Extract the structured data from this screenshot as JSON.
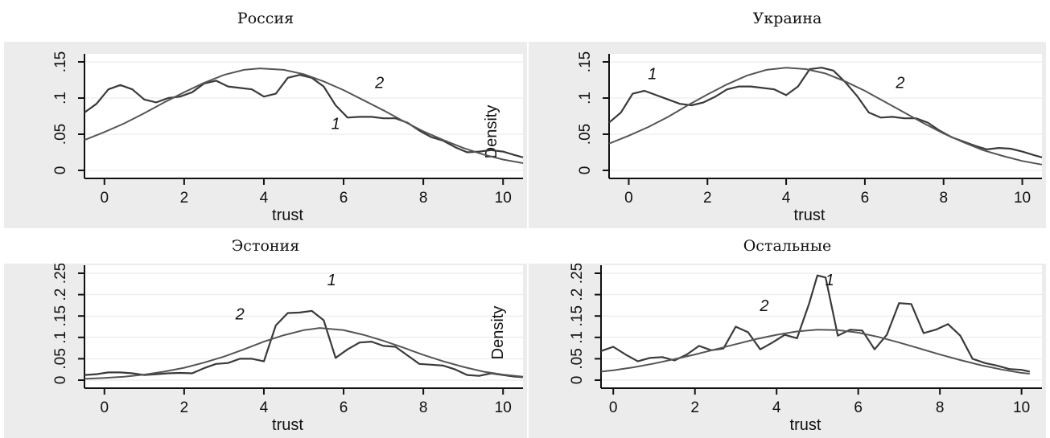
{
  "chart_data": [
    {
      "type": "line",
      "title": "Россия",
      "xlabel": "trust",
      "ylabel": "Density",
      "xlim": [
        -0.5,
        10.5
      ],
      "ylim": [
        0,
        0.15
      ],
      "xticks": [
        "0",
        "2",
        "4",
        "6",
        "8",
        "10"
      ],
      "yticks": [
        "0",
        ".05",
        ".1",
        ".15"
      ],
      "annotations": [
        {
          "text": "1",
          "x": 5.8,
          "y": 0.057
        },
        {
          "text": "2",
          "x": 6.9,
          "y": 0.114
        }
      ],
      "series": [
        {
          "name": "1",
          "kind": "kernel",
          "x": [
            -0.5,
            -0.2,
            0.1,
            0.4,
            0.7,
            1.0,
            1.3,
            1.6,
            1.9,
            2.2,
            2.5,
            2.8,
            3.1,
            3.4,
            3.7,
            4.0,
            4.3,
            4.6,
            4.9,
            5.2,
            5.5,
            5.8,
            6.1,
            6.4,
            6.7,
            7.0,
            7.3,
            7.6,
            7.9,
            8.2,
            8.5,
            8.8,
            9.1,
            9.4,
            9.7,
            10.0,
            10.3,
            10.5
          ],
          "y": [
            0.08,
            0.092,
            0.112,
            0.118,
            0.112,
            0.098,
            0.094,
            0.1,
            0.102,
            0.108,
            0.12,
            0.124,
            0.116,
            0.114,
            0.112,
            0.102,
            0.106,
            0.128,
            0.132,
            0.128,
            0.116,
            0.09,
            0.073,
            0.074,
            0.074,
            0.072,
            0.072,
            0.066,
            0.055,
            0.046,
            0.041,
            0.032,
            0.025,
            0.026,
            0.028,
            0.026,
            0.021,
            0.018
          ]
        },
        {
          "name": "2",
          "kind": "normal",
          "x": [
            -0.5,
            0.0,
            0.5,
            1.0,
            1.5,
            2.0,
            2.5,
            3.0,
            3.5,
            3.9,
            4.5,
            5.0,
            5.5,
            6.0,
            6.5,
            7.0,
            7.5,
            8.0,
            8.5,
            9.0,
            9.5,
            10.0,
            10.5
          ],
          "y": [
            0.042,
            0.053,
            0.065,
            0.079,
            0.094,
            0.108,
            0.121,
            0.132,
            0.139,
            0.141,
            0.139,
            0.133,
            0.123,
            0.111,
            0.097,
            0.083,
            0.068,
            0.054,
            0.042,
            0.031,
            0.022,
            0.015,
            0.01
          ]
        }
      ]
    },
    {
      "type": "line",
      "title": "Украина",
      "xlabel": "trust",
      "ylabel": "",
      "xlim": [
        -0.5,
        10.5
      ],
      "ylim": [
        0,
        0.15
      ],
      "xticks": [
        "0",
        "2",
        "4",
        "6",
        "8",
        "10"
      ],
      "yticks": [
        "0",
        ".05",
        ".1",
        ".15"
      ],
      "annotations": [
        {
          "text": "1",
          "x": 0.6,
          "y": 0.126
        },
        {
          "text": "2",
          "x": 6.9,
          "y": 0.114
        }
      ],
      "series": [
        {
          "name": "1",
          "kind": "kernel",
          "x": [
            -0.5,
            -0.2,
            0.1,
            0.4,
            0.7,
            1.0,
            1.3,
            1.6,
            1.9,
            2.2,
            2.5,
            2.8,
            3.1,
            3.4,
            3.7,
            4.0,
            4.3,
            4.6,
            4.9,
            5.2,
            5.5,
            5.8,
            6.1,
            6.4,
            6.7,
            7.0,
            7.3,
            7.6,
            7.9,
            8.2,
            8.5,
            8.8,
            9.1,
            9.4,
            9.7,
            10.0,
            10.3,
            10.5
          ],
          "y": [
            0.066,
            0.08,
            0.106,
            0.11,
            0.104,
            0.098,
            0.092,
            0.09,
            0.094,
            0.102,
            0.112,
            0.116,
            0.116,
            0.114,
            0.112,
            0.104,
            0.116,
            0.14,
            0.142,
            0.138,
            0.122,
            0.103,
            0.08,
            0.073,
            0.074,
            0.072,
            0.072,
            0.066,
            0.055,
            0.046,
            0.04,
            0.034,
            0.029,
            0.031,
            0.03,
            0.026,
            0.021,
            0.018
          ]
        },
        {
          "name": "2",
          "kind": "normal",
          "x": [
            -0.5,
            0.0,
            0.5,
            1.0,
            1.5,
            2.0,
            2.5,
            3.0,
            3.5,
            4.0,
            4.5,
            5.0,
            5.5,
            6.0,
            6.5,
            7.0,
            7.5,
            8.0,
            8.5,
            9.0,
            9.5,
            10.0,
            10.5
          ],
          "y": [
            0.037,
            0.048,
            0.06,
            0.074,
            0.09,
            0.105,
            0.119,
            0.131,
            0.139,
            0.142,
            0.14,
            0.134,
            0.123,
            0.11,
            0.095,
            0.08,
            0.065,
            0.051,
            0.039,
            0.028,
            0.02,
            0.013,
            0.008
          ]
        }
      ]
    },
    {
      "type": "line",
      "title": "Эстония",
      "xlabel": "trust",
      "ylabel": "Density",
      "xlim": [
        -0.5,
        10.5
      ],
      "ylim": [
        0,
        0.25
      ],
      "xticks": [
        "0",
        "2",
        "4",
        "6",
        "8",
        "10"
      ],
      "yticks": [
        "0",
        ".05",
        ".1",
        ".15",
        ".2",
        ".25"
      ],
      "annotations": [
        {
          "text": "1",
          "x": 5.7,
          "y": 0.222
        },
        {
          "text": "2",
          "x": 3.4,
          "y": 0.142
        }
      ],
      "series": [
        {
          "name": "1",
          "kind": "kernel",
          "x": [
            -0.5,
            -0.2,
            0.1,
            0.4,
            0.7,
            1.0,
            1.3,
            1.6,
            1.9,
            2.2,
            2.5,
            2.8,
            3.1,
            3.4,
            3.7,
            4.0,
            4.3,
            4.6,
            4.9,
            5.2,
            5.5,
            5.8,
            6.1,
            6.4,
            6.7,
            7.0,
            7.3,
            7.6,
            7.9,
            8.2,
            8.5,
            8.8,
            9.1,
            9.4,
            9.7,
            10.0,
            10.3,
            10.5
          ],
          "y": [
            0.012,
            0.014,
            0.018,
            0.018,
            0.016,
            0.012,
            0.014,
            0.016,
            0.017,
            0.016,
            0.028,
            0.038,
            0.04,
            0.05,
            0.05,
            0.044,
            0.128,
            0.157,
            0.158,
            0.162,
            0.14,
            0.052,
            0.072,
            0.088,
            0.09,
            0.08,
            0.078,
            0.058,
            0.038,
            0.036,
            0.034,
            0.025,
            0.012,
            0.01,
            0.016,
            0.012,
            0.008,
            0.007
          ]
        },
        {
          "name": "2",
          "kind": "normal",
          "x": [
            -0.5,
            0.0,
            0.5,
            1.0,
            1.5,
            2.0,
            2.5,
            3.0,
            3.5,
            4.0,
            4.5,
            5.0,
            5.4,
            6.0,
            6.5,
            7.0,
            7.5,
            8.0,
            8.5,
            9.0,
            9.5,
            10.0,
            10.5
          ],
          "y": [
            0.003,
            0.005,
            0.008,
            0.013,
            0.02,
            0.029,
            0.041,
            0.055,
            0.072,
            0.09,
            0.105,
            0.117,
            0.122,
            0.117,
            0.106,
            0.092,
            0.076,
            0.059,
            0.044,
            0.031,
            0.02,
            0.013,
            0.008
          ]
        }
      ]
    },
    {
      "type": "line",
      "title": "Остальные",
      "xlabel": "trust",
      "ylabel": "",
      "xlim": [
        -0.3,
        10.5
      ],
      "ylim": [
        0,
        0.25
      ],
      "xticks": [
        "0",
        "2",
        "4",
        "6",
        "8",
        "10"
      ],
      "yticks": [
        "0",
        ".05",
        ".1",
        ".15",
        ".2",
        ".25"
      ],
      "annotations": [
        {
          "text": "1",
          "x": 5.3,
          "y": 0.222
        },
        {
          "text": "2",
          "x": 3.7,
          "y": 0.162
        }
      ],
      "series": [
        {
          "name": "1",
          "kind": "kernel",
          "x": [
            -0.3,
            0.0,
            0.3,
            0.6,
            0.9,
            1.2,
            1.5,
            1.8,
            2.1,
            2.4,
            2.7,
            3.0,
            3.3,
            3.6,
            3.9,
            4.2,
            4.5,
            4.8,
            5.0,
            5.2,
            5.5,
            5.8,
            6.1,
            6.4,
            6.7,
            7.0,
            7.3,
            7.6,
            7.9,
            8.2,
            8.5,
            8.8,
            9.1,
            9.4,
            9.7,
            10.0,
            10.2
          ],
          "y": [
            0.068,
            0.078,
            0.06,
            0.044,
            0.052,
            0.054,
            0.046,
            0.06,
            0.08,
            0.07,
            0.074,
            0.125,
            0.112,
            0.072,
            0.088,
            0.106,
            0.098,
            0.18,
            0.245,
            0.24,
            0.104,
            0.118,
            0.116,
            0.072,
            0.106,
            0.18,
            0.178,
            0.11,
            0.118,
            0.131,
            0.104,
            0.05,
            0.04,
            0.034,
            0.026,
            0.024,
            0.02
          ]
        },
        {
          "name": "2",
          "kind": "normal",
          "x": [
            -0.3,
            0.0,
            0.5,
            1.0,
            1.5,
            2.0,
            2.5,
            3.0,
            3.5,
            4.0,
            4.5,
            5.0,
            5.5,
            6.0,
            6.5,
            7.0,
            7.5,
            8.0,
            8.5,
            9.0,
            9.5,
            10.0,
            10.2
          ],
          "y": [
            0.02,
            0.023,
            0.03,
            0.039,
            0.049,
            0.06,
            0.072,
            0.084,
            0.096,
            0.106,
            0.114,
            0.118,
            0.117,
            0.111,
            0.101,
            0.088,
            0.074,
            0.06,
            0.047,
            0.035,
            0.025,
            0.017,
            0.015
          ]
        }
      ]
    }
  ]
}
